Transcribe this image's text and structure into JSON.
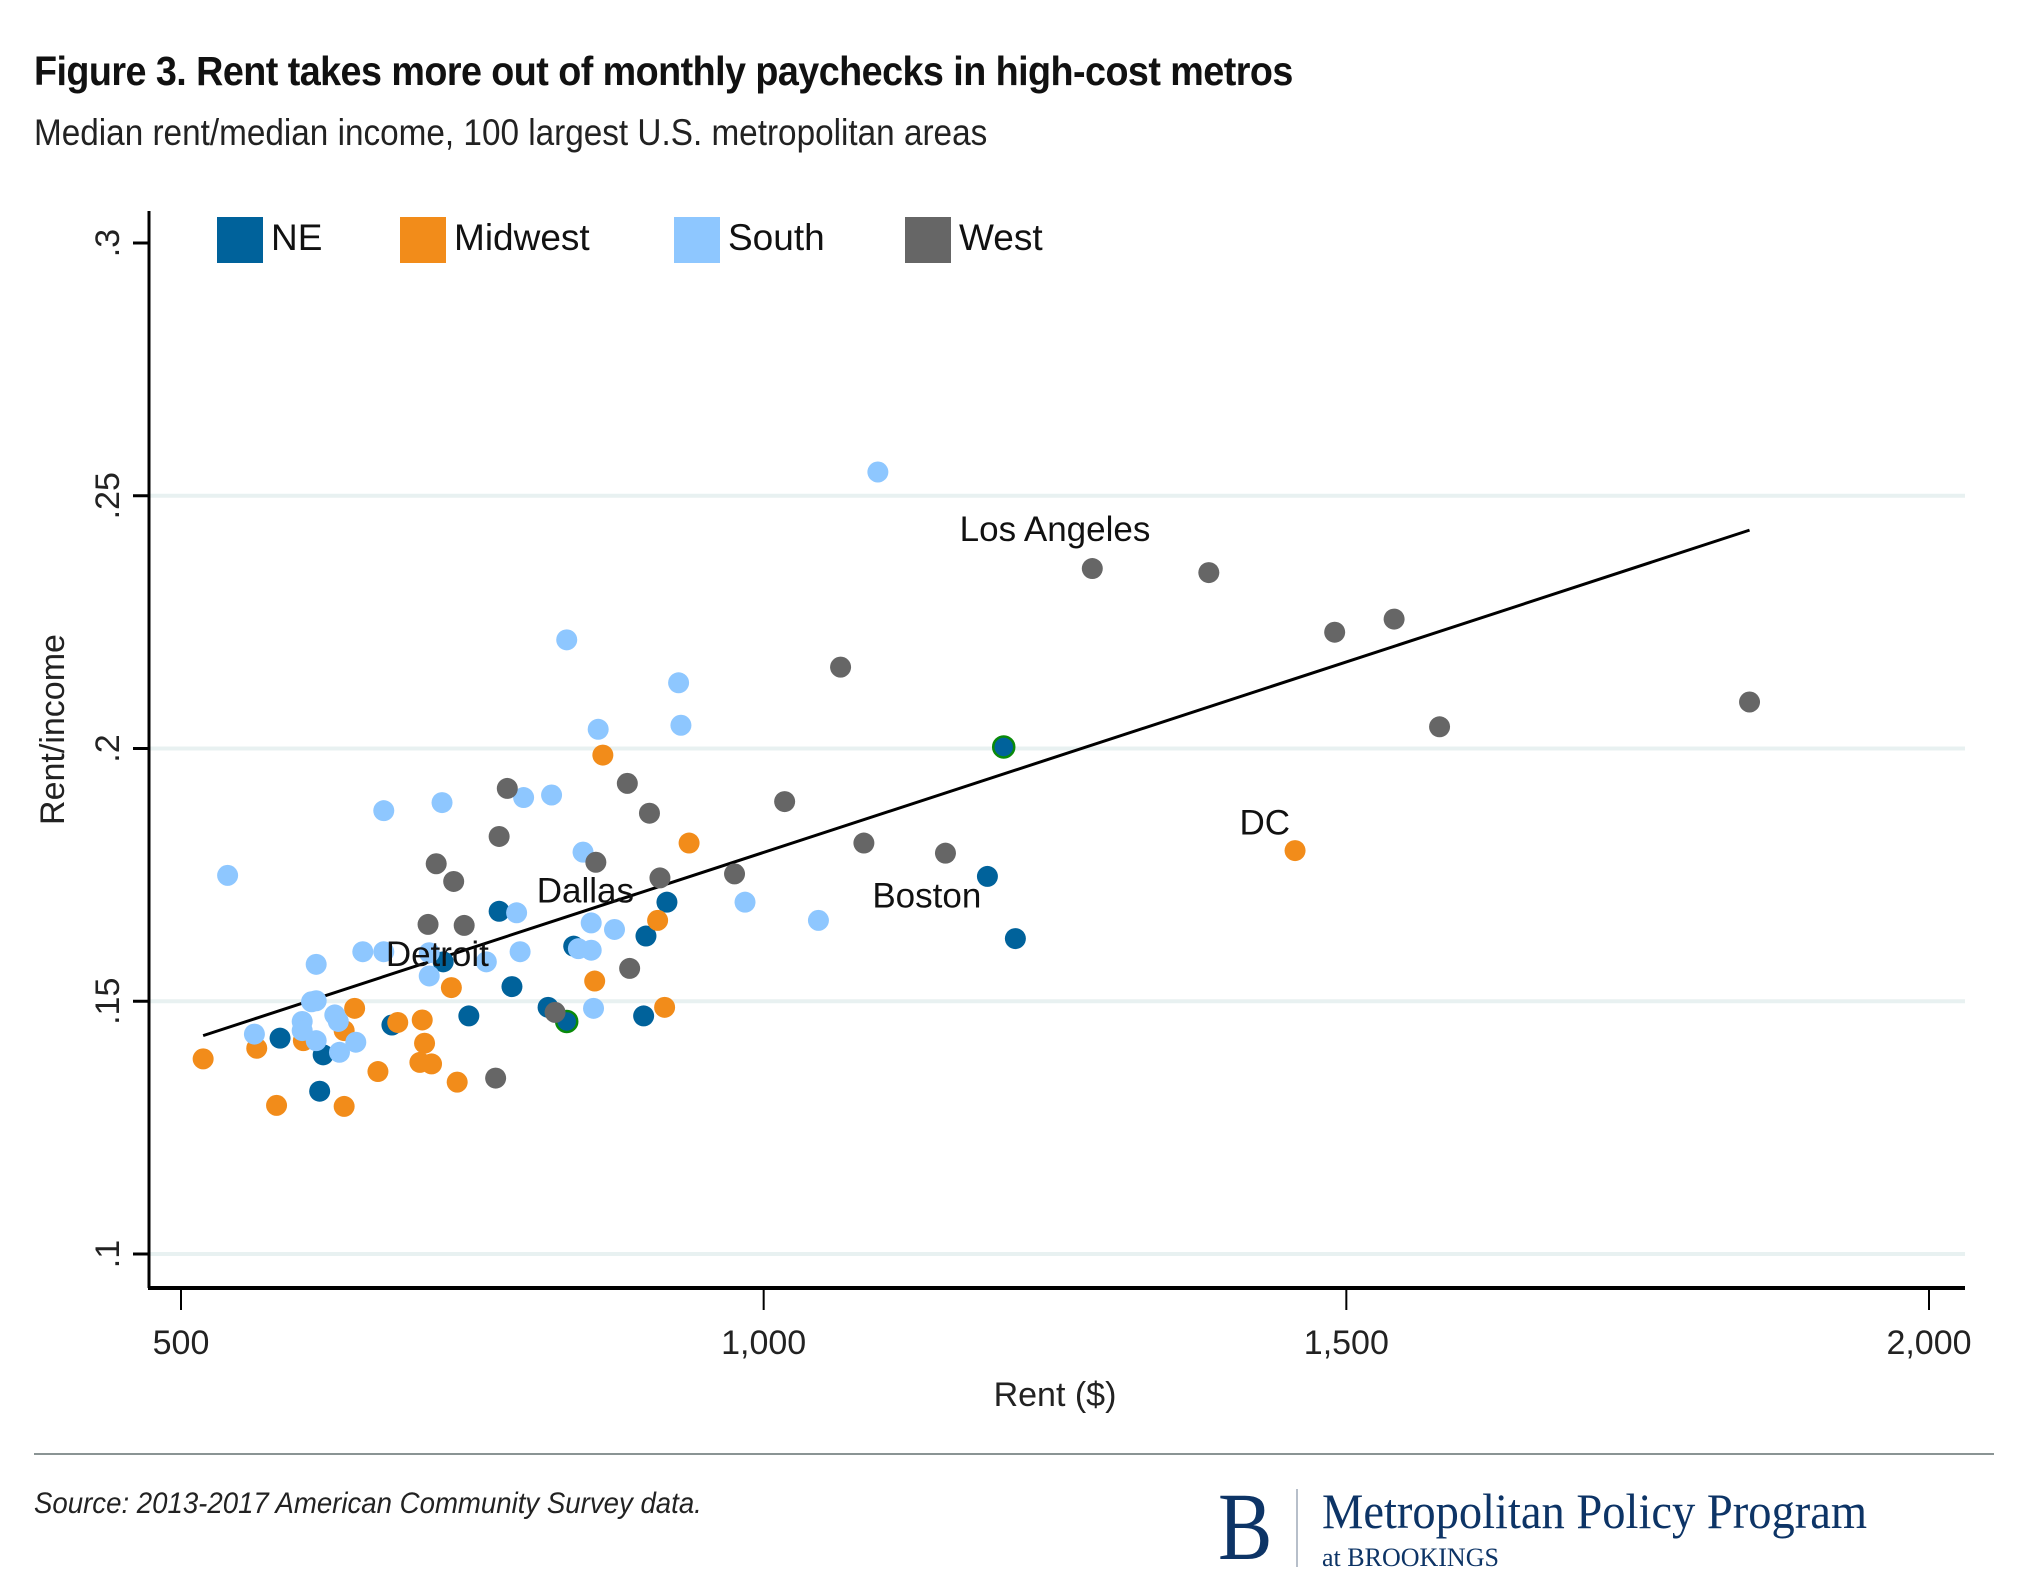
{
  "header": {
    "title": "Figure 3. Rent takes more out of monthly paychecks in high-cost metros",
    "subtitle": "Median rent/median income, 100 largest U.S. metropolitan areas"
  },
  "footer": {
    "source": "Source: 2013-2017 American Community Survey data.",
    "logo_letter": "B",
    "logo_main": "Metropolitan Policy Program",
    "logo_sub": "at BROOKINGS"
  },
  "chart_data": {
    "type": "scatter",
    "title": "Figure 3. Rent takes more out of monthly paychecks in high-cost metros",
    "subtitle": "Median rent/median income, 100 largest U.S. metropolitan areas",
    "xlabel": "Rent ($)",
    "ylabel": "Rent/income",
    "xlim": [
      500,
      2000
    ],
    "ylim": [
      0.1,
      0.3
    ],
    "xticks": [
      500,
      1000,
      1500,
      2000
    ],
    "xtick_labels": [
      "500",
      "1,000",
      "1,500",
      "2,000"
    ],
    "yticks": [
      0.1,
      0.15,
      0.2,
      0.25,
      0.3
    ],
    "ytick_labels": [
      ".1",
      ".15",
      ".2",
      ".25",
      ".3"
    ],
    "grid": "horizontal",
    "legend_position": "top-left",
    "highlight_color": "#0a8a0a",
    "series": [
      {
        "name": "NE",
        "color": "#00629B",
        "points": [
          [
            1192,
            0.1747
          ],
          [
            1216,
            0.1624
          ],
          [
            1206,
            0.2003,
            1
          ],
          [
            917,
            0.1696
          ],
          [
            899,
            0.1629
          ],
          [
            837,
            0.1609
          ],
          [
            725,
            0.1578
          ],
          [
            773,
            0.1678
          ],
          [
            784,
            0.1529
          ],
          [
            747,
            0.1471
          ],
          [
            681,
            0.1453
          ],
          [
            585,
            0.1427
          ],
          [
            622,
            0.1394
          ],
          [
            619,
            0.1322
          ],
          [
            815,
            0.1488
          ],
          [
            831,
            0.146,
            1
          ],
          [
            897,
            0.1471
          ]
        ]
      },
      {
        "name": "Midwest",
        "color": "#F28C1A",
        "points": [
          [
            1456,
            0.1798
          ],
          [
            862,
            0.1987
          ],
          [
            936,
            0.1813
          ],
          [
            909,
            0.166
          ],
          [
            855,
            0.154
          ],
          [
            915,
            0.1488
          ],
          [
            732,
            0.1527
          ],
          [
            649,
            0.1486
          ],
          [
            686,
            0.1458
          ],
          [
            707,
            0.1463
          ],
          [
            640,
            0.1442
          ],
          [
            605,
            0.1422
          ],
          [
            565,
            0.1407
          ],
          [
            519,
            0.1386
          ],
          [
            709,
            0.1417
          ],
          [
            705,
            0.1379
          ],
          [
            715,
            0.1376
          ],
          [
            737,
            0.134
          ],
          [
            669,
            0.1361
          ],
          [
            582,
            0.1294
          ],
          [
            640,
            0.1292
          ]
        ]
      },
      {
        "name": "South",
        "color": "#8EC7FF",
        "points": [
          [
            1098,
            0.2547
          ],
          [
            831,
            0.2215
          ],
          [
            927,
            0.213
          ],
          [
            929,
            0.2046
          ],
          [
            858,
            0.2038
          ],
          [
            984,
            0.1696
          ],
          [
            1047,
            0.166
          ],
          [
            724,
            0.1893
          ],
          [
            674,
            0.1877
          ],
          [
            794,
            0.1903
          ],
          [
            818,
            0.1908
          ],
          [
            845,
            0.1795
          ],
          [
            788,
            0.1675
          ],
          [
            852,
            0.1655
          ],
          [
            872,
            0.1642
          ],
          [
            841,
            0.1604
          ],
          [
            852,
            0.1601
          ],
          [
            791,
            0.1598
          ],
          [
            762,
            0.1578
          ],
          [
            713,
            0.155
          ],
          [
            674,
            0.1598
          ],
          [
            656,
            0.1598
          ],
          [
            616,
            0.1573
          ],
          [
            540,
            0.1749
          ],
          [
            616,
            0.1501
          ],
          [
            612,
            0.1499
          ],
          [
            632,
            0.1473
          ],
          [
            604,
            0.146
          ],
          [
            635,
            0.146
          ],
          [
            604,
            0.1442
          ],
          [
            563,
            0.1435
          ],
          [
            616,
            0.1422
          ],
          [
            650,
            0.1419
          ],
          [
            636,
            0.1399
          ],
          [
            854,
            0.1486
          ],
          [
            713,
            0.1596
          ]
        ]
      },
      {
        "name": "West",
        "color": "#666666",
        "points": [
          [
            1282,
            0.2356
          ],
          [
            1382,
            0.2348
          ],
          [
            1490,
            0.223
          ],
          [
            1541,
            0.2256
          ],
          [
            1846,
            0.2092
          ],
          [
            1580,
            0.2043
          ],
          [
            1066,
            0.2161
          ],
          [
            1018,
            0.1895
          ],
          [
            1086,
            0.1813
          ],
          [
            1156,
            0.1793
          ],
          [
            975,
            0.1752
          ],
          [
            911,
            0.1744
          ],
          [
            883,
            0.1931
          ],
          [
            902,
            0.1872
          ],
          [
            856,
            0.1775
          ],
          [
            780,
            0.1921
          ],
          [
            773,
            0.1826
          ],
          [
            719,
            0.1772
          ],
          [
            734,
            0.1737
          ],
          [
            712,
            0.1652
          ],
          [
            743,
            0.165
          ],
          [
            885,
            0.1565
          ],
          [
            821,
            0.1478
          ],
          [
            770,
            0.1348
          ]
        ]
      }
    ],
    "fit_line": {
      "x": [
        519,
        1846
      ],
      "y": [
        0.1432,
        0.2432
      ]
    },
    "annotations": [
      {
        "text": "Los Angeles",
        "x": 1250,
        "y": 0.241
      },
      {
        "text": "Dallas",
        "x": 847,
        "y": 0.1695
      },
      {
        "text": "Detroit",
        "x": 720,
        "y": 0.157
      },
      {
        "text": "Boston",
        "x": 1140,
        "y": 0.1685
      },
      {
        "text": "DC",
        "x": 1430,
        "y": 0.183
      }
    ]
  }
}
